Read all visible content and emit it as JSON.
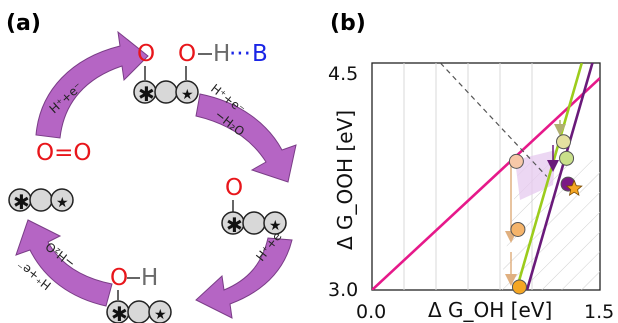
{
  "figure": {
    "panel_a_label": "(a)",
    "panel_b_label": "(b)"
  },
  "panel_a": {
    "steps": [
      {
        "reagent": "H⁺+e⁻"
      },
      {
        "reagent": "H⁺+e⁻",
        "byproduct": "−H₂O"
      },
      {
        "reagent": "H⁺+e⁻"
      },
      {
        "reagent": "H⁺+e⁻",
        "byproduct": "−H₂O"
      }
    ],
    "species": {
      "o2": "O=O",
      "top_o": "O",
      "top_oh_o": "O",
      "top_h": "H",
      "top_dots": "···",
      "top_b": "B",
      "right_o": "O",
      "bottom_o": "O",
      "bottom_h": "H"
    },
    "colors": {
      "arrow": "#b565c4",
      "arrow_edge": "#7a3d87",
      "oxygen": "#e8161b",
      "base": "#1a25e6"
    }
  },
  "chart_data": {
    "type": "scatter",
    "title": "",
    "xlabel": "Δ G_OH [eV]",
    "ylabel": "Δ G_OOH [eV]",
    "xlim": [
      0.0,
      1.5
    ],
    "ylim": [
      3.0,
      4.5
    ],
    "x_ticks": [
      "0.0",
      "1.5"
    ],
    "y_ticks": [
      "3.0",
      "4.5"
    ],
    "lines": [
      {
        "color": "#e6198a",
        "points": [
          [
            0.0,
            3.0
          ],
          [
            1.5,
            4.4
          ]
        ]
      },
      {
        "color": "#9ccc1c",
        "points": [
          [
            0.95,
            3.0
          ],
          [
            1.38,
            4.5
          ]
        ]
      },
      {
        "color": "#6a1a7a",
        "points": [
          [
            1.02,
            3.0
          ],
          [
            1.45,
            4.5
          ]
        ]
      },
      {
        "color": "#555555",
        "style": "dashed",
        "points": [
          [
            0.45,
            4.5
          ],
          [
            1.15,
            3.75
          ]
        ]
      }
    ],
    "points": [
      {
        "x": 0.95,
        "y": 3.85,
        "color": "#f7c8a8"
      },
      {
        "x": 0.96,
        "y": 3.4,
        "color": "#f5b46a"
      },
      {
        "x": 0.97,
        "y": 3.02,
        "color": "#f5a623"
      },
      {
        "x": 1.26,
        "y": 3.98,
        "color": "#e4e0a0"
      },
      {
        "x": 1.28,
        "y": 3.87,
        "color": "#c9e08a"
      },
      {
        "x": 1.29,
        "y": 3.7,
        "color": "#7b1a85"
      }
    ],
    "star": {
      "x": 1.33,
      "y": 3.67,
      "color": "#f5a623"
    }
  }
}
